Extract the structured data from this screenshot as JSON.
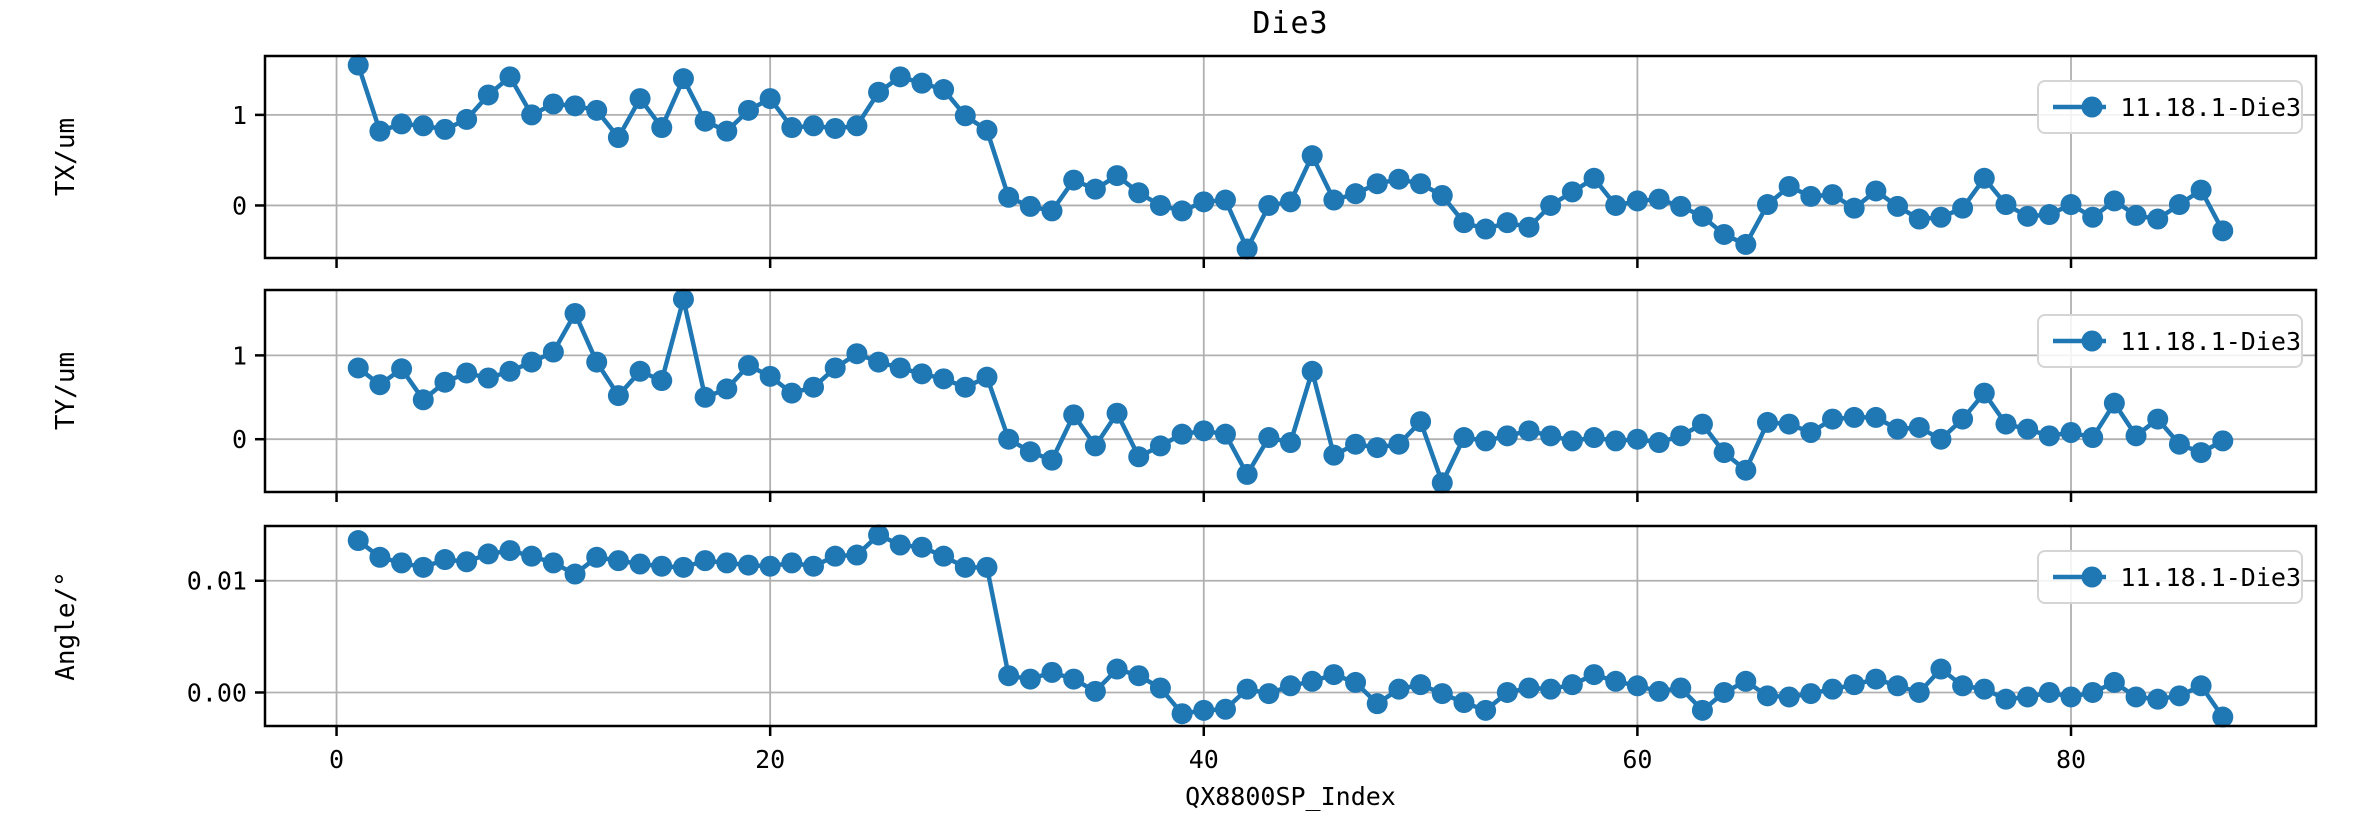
{
  "title": "Die3",
  "xlabel": "QX8800SP_Index",
  "legend_label": "11.18.1-Die3",
  "colors": {
    "series_line": "#1f77b4",
    "grid_line": "#b0b0b0",
    "spine": "#000000",
    "legend_border": "#d5d5d5"
  },
  "chart_data": [
    {
      "type": "line",
      "name": "tx",
      "ylabel": "TX/um",
      "legend": "11.18.1-Die3",
      "legend_position": "upper right",
      "grid": true,
      "marker": "circle",
      "xlim": [
        -3.3,
        91.3
      ],
      "ylim": [
        -0.58,
        1.65
      ],
      "xticks": [
        0,
        20,
        40,
        60,
        80
      ],
      "xtick_labels": [
        "0",
        "20",
        "40",
        "60",
        "80"
      ],
      "show_xtick_labels": false,
      "yticks": [
        0,
        1
      ],
      "ytick_labels": [
        "0",
        "1"
      ],
      "x": [
        1,
        2,
        3,
        4,
        5,
        6,
        7,
        8,
        9,
        10,
        11,
        12,
        13,
        14,
        15,
        16,
        17,
        18,
        19,
        20,
        21,
        22,
        23,
        24,
        25,
        26,
        27,
        28,
        29,
        30,
        31,
        32,
        33,
        34,
        35,
        36,
        37,
        38,
        39,
        40,
        41,
        42,
        43,
        44,
        45,
        46,
        47,
        48,
        49,
        50,
        51,
        52,
        53,
        54,
        55,
        56,
        57,
        58,
        59,
        60,
        61,
        62,
        63,
        64,
        65,
        66,
        67,
        68,
        69,
        70,
        71,
        72,
        73,
        74,
        75,
        76,
        77,
        78,
        79,
        80,
        81,
        82,
        83,
        84,
        85,
        86,
        87
      ],
      "values": [
        1.55,
        0.82,
        0.9,
        0.88,
        0.84,
        0.95,
        1.22,
        1.42,
        1.0,
        1.12,
        1.1,
        1.05,
        0.75,
        1.18,
        0.86,
        1.4,
        0.93,
        0.82,
        1.05,
        1.18,
        0.86,
        0.88,
        0.85,
        0.88,
        1.25,
        1.42,
        1.35,
        1.28,
        0.99,
        0.83,
        0.09,
        -0.01,
        -0.06,
        0.28,
        0.18,
        0.33,
        0.14,
        0.0,
        -0.06,
        0.04,
        0.06,
        -0.48,
        0.0,
        0.04,
        0.55,
        0.06,
        0.13,
        0.24,
        0.29,
        0.24,
        0.11,
        -0.19,
        -0.26,
        -0.19,
        -0.24,
        0.0,
        0.15,
        0.3,
        0.0,
        0.05,
        0.07,
        -0.01,
        -0.12,
        -0.32,
        -0.43,
        0.01,
        0.21,
        0.1,
        0.12,
        -0.03,
        0.16,
        -0.01,
        -0.15,
        -0.13,
        -0.03,
        0.3,
        0.01,
        -0.12,
        -0.1,
        0.01,
        -0.13,
        0.05,
        -0.11,
        -0.15,
        0.01,
        0.17,
        -0.28
      ]
    },
    {
      "type": "line",
      "name": "ty",
      "ylabel": "TY/um",
      "legend": "11.18.1-Die3",
      "legend_position": "upper right",
      "grid": true,
      "marker": "circle",
      "xlim": [
        -3.3,
        91.3
      ],
      "ylim": [
        -0.63,
        1.78
      ],
      "xticks": [
        0,
        20,
        40,
        60,
        80
      ],
      "xtick_labels": [
        "0",
        "20",
        "40",
        "60",
        "80"
      ],
      "show_xtick_labels": false,
      "yticks": [
        0,
        1
      ],
      "ytick_labels": [
        "0",
        "1"
      ],
      "x": [
        1,
        2,
        3,
        4,
        5,
        6,
        7,
        8,
        9,
        10,
        11,
        12,
        13,
        14,
        15,
        16,
        17,
        18,
        19,
        20,
        21,
        22,
        23,
        24,
        25,
        26,
        27,
        28,
        29,
        30,
        31,
        32,
        33,
        34,
        35,
        36,
        37,
        38,
        39,
        40,
        41,
        42,
        43,
        44,
        45,
        46,
        47,
        48,
        49,
        50,
        51,
        52,
        53,
        54,
        55,
        56,
        57,
        58,
        59,
        60,
        61,
        62,
        63,
        64,
        65,
        66,
        67,
        68,
        69,
        70,
        71,
        72,
        73,
        74,
        75,
        76,
        77,
        78,
        79,
        80,
        81,
        82,
        83,
        84,
        85,
        86,
        87
      ],
      "values": [
        0.85,
        0.65,
        0.84,
        0.47,
        0.68,
        0.79,
        0.73,
        0.81,
        0.92,
        1.04,
        1.5,
        0.92,
        0.52,
        0.81,
        0.7,
        1.67,
        0.5,
        0.6,
        0.88,
        0.75,
        0.55,
        0.62,
        0.85,
        1.02,
        0.92,
        0.85,
        0.78,
        0.72,
        0.62,
        0.74,
        0.0,
        -0.15,
        -0.25,
        0.29,
        -0.08,
        0.31,
        -0.21,
        -0.08,
        0.06,
        0.1,
        0.06,
        -0.42,
        0.02,
        -0.04,
        0.81,
        -0.19,
        -0.06,
        -0.1,
        -0.06,
        0.21,
        -0.52,
        0.02,
        -0.02,
        0.04,
        0.1,
        0.04,
        -0.02,
        0.02,
        -0.02,
        0.0,
        -0.04,
        0.04,
        0.18,
        -0.16,
        -0.37,
        0.2,
        0.18,
        0.08,
        0.24,
        0.26,
        0.26,
        0.12,
        0.14,
        0.0,
        0.24,
        0.55,
        0.18,
        0.12,
        0.04,
        0.08,
        0.02,
        0.43,
        0.04,
        0.24,
        -0.06,
        -0.16,
        -0.02
      ]
    },
    {
      "type": "line",
      "name": "angle",
      "ylabel": "Angle/°",
      "legend": "11.18.1-Die3",
      "legend_position": "upper right",
      "grid": true,
      "marker": "circle",
      "xlim": [
        -3.3,
        91.3
      ],
      "ylim": [
        -0.003,
        0.0149
      ],
      "xticks": [
        0,
        20,
        40,
        60,
        80
      ],
      "xtick_labels": [
        "0",
        "20",
        "40",
        "60",
        "80"
      ],
      "show_xtick_labels": true,
      "yticks": [
        0,
        0.01
      ],
      "ytick_labels": [
        "0.00",
        "0.01"
      ],
      "x": [
        1,
        2,
        3,
        4,
        5,
        6,
        7,
        8,
        9,
        10,
        11,
        12,
        13,
        14,
        15,
        16,
        17,
        18,
        19,
        20,
        21,
        22,
        23,
        24,
        25,
        26,
        27,
        28,
        29,
        30,
        31,
        32,
        33,
        34,
        35,
        36,
        37,
        38,
        39,
        40,
        41,
        42,
        43,
        44,
        45,
        46,
        47,
        48,
        49,
        50,
        51,
        52,
        53,
        54,
        55,
        56,
        57,
        58,
        59,
        60,
        61,
        62,
        63,
        64,
        65,
        66,
        67,
        68,
        69,
        70,
        71,
        72,
        73,
        74,
        75,
        76,
        77,
        78,
        79,
        80,
        81,
        82,
        83,
        84,
        85,
        86,
        87
      ],
      "values": [
        0.0136,
        0.0121,
        0.0116,
        0.0112,
        0.0119,
        0.0117,
        0.0124,
        0.0127,
        0.0122,
        0.0116,
        0.0106,
        0.0121,
        0.0118,
        0.0115,
        0.0113,
        0.0112,
        0.0118,
        0.0116,
        0.0114,
        0.0113,
        0.0116,
        0.0113,
        0.0122,
        0.0123,
        0.0141,
        0.0132,
        0.013,
        0.0122,
        0.0112,
        0.0112,
        0.0015,
        0.0012,
        0.0018,
        0.0012,
        0.0001,
        0.0021,
        0.0015,
        0.0004,
        -0.0019,
        -0.0016,
        -0.0015,
        0.0003,
        -0.0001,
        0.0006,
        0.001,
        0.0016,
        0.0009,
        -0.001,
        0.0003,
        0.0007,
        -0.0001,
        -0.0009,
        -0.0016,
        0.0,
        0.0004,
        0.0003,
        0.0007,
        0.0016,
        0.001,
        0.0006,
        0.0001,
        0.0004,
        -0.0016,
        0.0,
        0.001,
        -0.0003,
        -0.0004,
        -0.0001,
        0.0003,
        0.0007,
        0.0012,
        0.0006,
        0.0,
        0.0021,
        0.0006,
        0.0003,
        -0.0006,
        -0.0004,
        0.0,
        -0.0004,
        0.0,
        0.0009,
        -0.0004,
        -0.0006,
        -0.0003,
        0.0006,
        -0.0022
      ]
    }
  ]
}
